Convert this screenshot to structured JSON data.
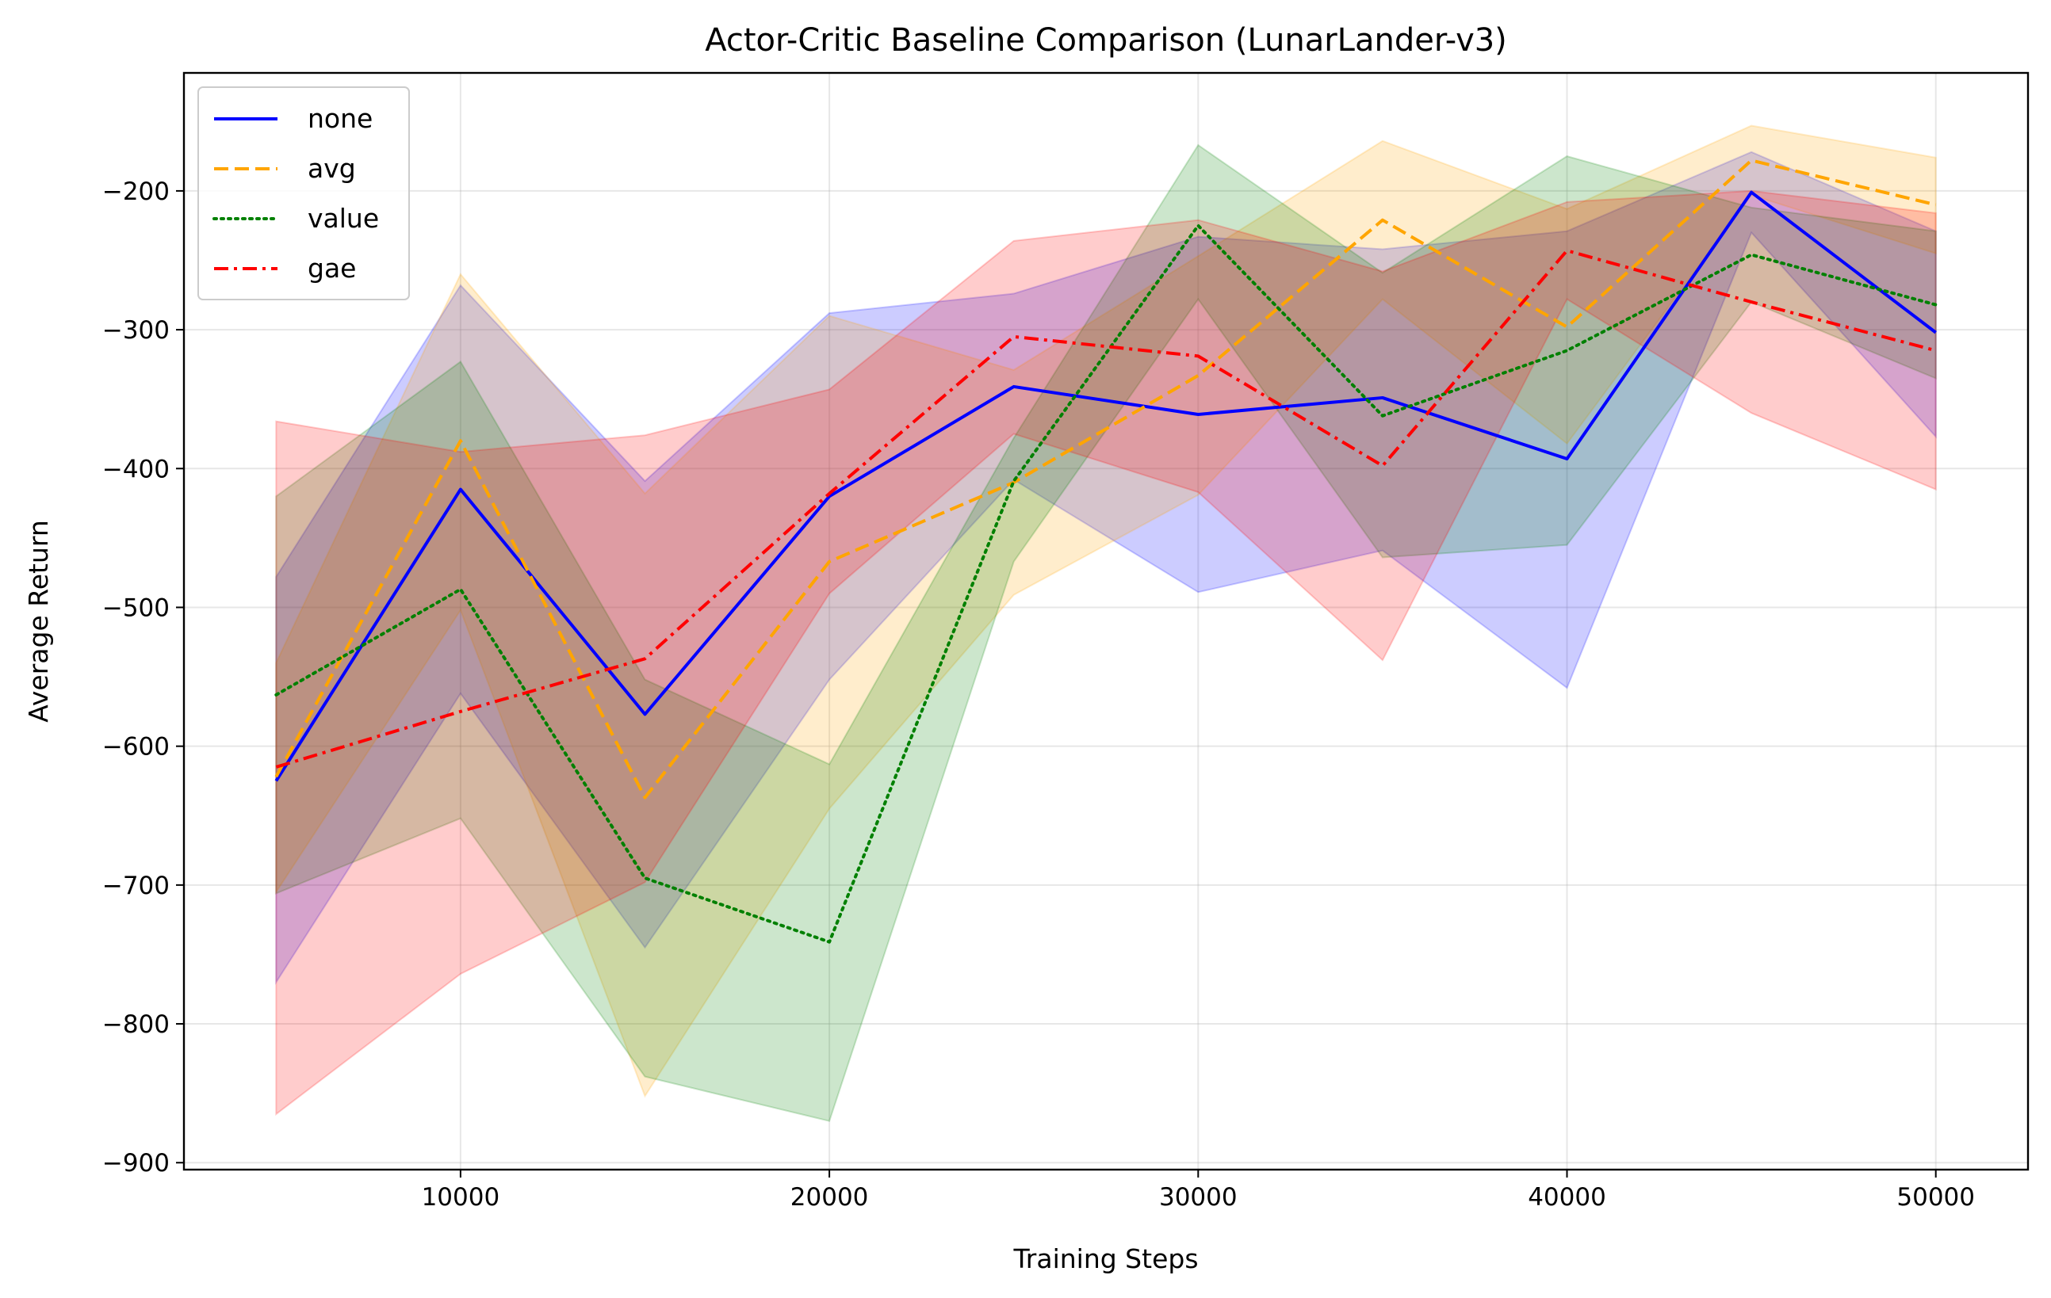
{
  "chart_data": {
    "type": "line",
    "title": "Actor-Critic Baseline Comparison (LunarLander-v3)",
    "xlabel": "Training Steps",
    "ylabel": "Average Return",
    "xlim": [
      2500,
      52500
    ],
    "ylim": [
      -905,
      -115
    ],
    "xticks": [
      10000,
      20000,
      30000,
      40000,
      50000
    ],
    "yticks": [
      -900,
      -800,
      -700,
      -600,
      -500,
      -400,
      -300,
      -200
    ],
    "grid": true,
    "legend_position": "top-left",
    "x": [
      5000,
      10000,
      15000,
      20000,
      25000,
      30000,
      35000,
      40000,
      45000,
      50000
    ],
    "series": [
      {
        "name": "none",
        "color": "#0000ff",
        "dash": "solid",
        "values": [
          -625,
          -415,
          -577,
          -420,
          -341,
          -361,
          -349,
          -393,
          -201,
          -302
        ],
        "lower": [
          -770,
          -562,
          -745,
          -552,
          -408,
          -489,
          -459,
          -558,
          -230,
          -377
        ],
        "upper": [
          -478,
          -268,
          -409,
          -288,
          -274,
          -233,
          -242,
          -229,
          -172,
          -229
        ]
      },
      {
        "name": "avg",
        "color": "#ffa500",
        "dash": "dashed",
        "values": [
          -622,
          -380,
          -637,
          -467,
          -410,
          -333,
          -221,
          -298,
          -178,
          -210
        ],
        "lower": [
          -705,
          -502,
          -852,
          -645,
          -491,
          -419,
          -278,
          -382,
          -203,
          -245
        ],
        "upper": [
          -540,
          -260,
          -418,
          -290,
          -329,
          -247,
          -164,
          -213,
          -153,
          -176
        ]
      },
      {
        "name": "value",
        "color": "#008000",
        "dash": "dotted",
        "values": [
          -563,
          -487,
          -695,
          -741,
          -409,
          -225,
          -362,
          -315,
          -246,
          -282
        ],
        "lower": [
          -706,
          -652,
          -838,
          -870,
          -467,
          -278,
          -464,
          -455,
          -280,
          -335
        ],
        "upper": [
          -420,
          -323,
          -552,
          -613,
          -378,
          -167,
          -259,
          -175,
          -212,
          -229
        ]
      },
      {
        "name": "gae",
        "color": "#ff0000",
        "dash": "dashdot",
        "values": [
          -615,
          -575,
          -537,
          -418,
          -305,
          -319,
          -398,
          -243,
          -280,
          -315
        ],
        "lower": [
          -865,
          -764,
          -698,
          -490,
          -375,
          -417,
          -538,
          -278,
          -360,
          -415
        ],
        "upper": [
          -366,
          -388,
          -376,
          -343,
          -236,
          -221,
          -258,
          -208,
          -200,
          -216
        ]
      }
    ]
  }
}
